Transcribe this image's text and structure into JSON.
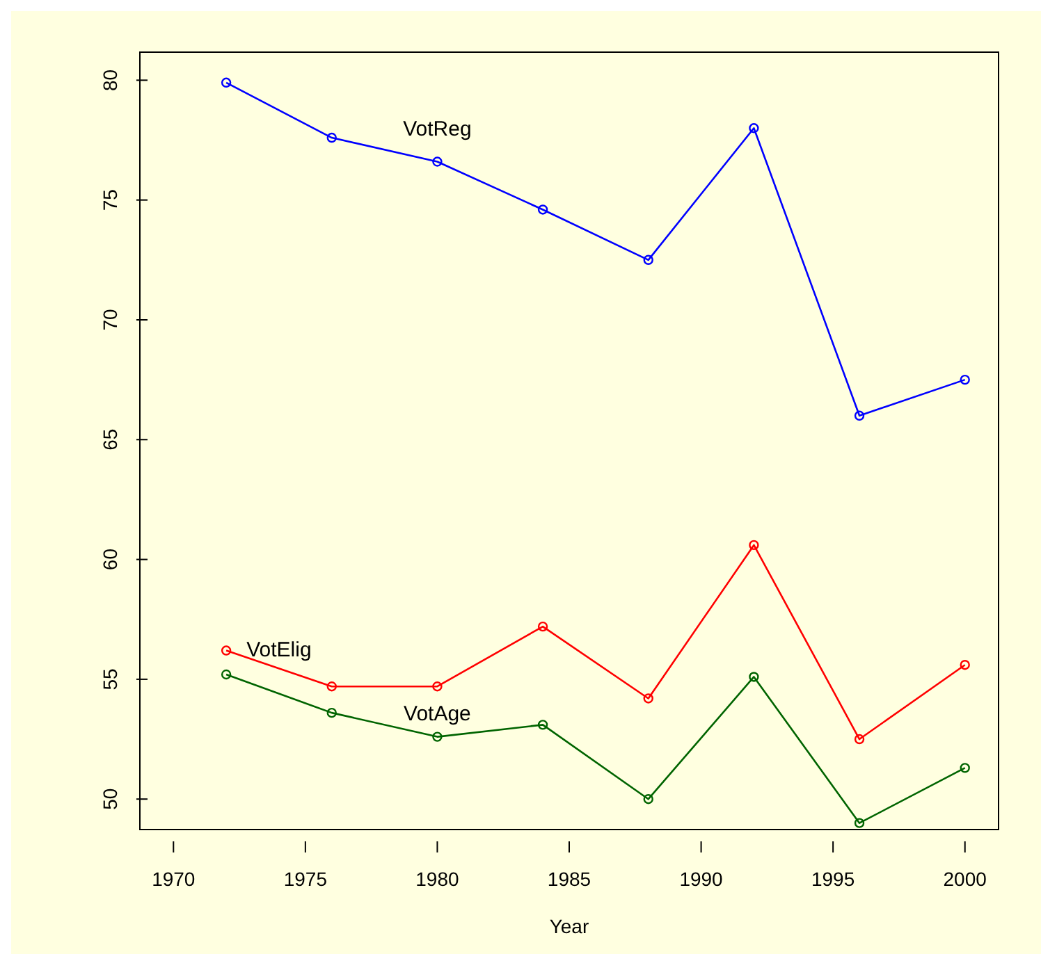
{
  "chart_data": {
    "type": "line",
    "xlabel": "Year",
    "x": [
      1972,
      1976,
      1980,
      1984,
      1988,
      1992,
      1996,
      2000
    ],
    "series": [
      {
        "name": "VotReg",
        "color": "#0000ff",
        "values": [
          79.9,
          77.6,
          76.6,
          74.6,
          72.5,
          78.0,
          66.0,
          67.5
        ]
      },
      {
        "name": "VotElig",
        "color": "#ff0000",
        "values": [
          56.2,
          54.7,
          54.7,
          57.2,
          54.2,
          60.6,
          52.5,
          55.6
        ]
      },
      {
        "name": "VotAge",
        "color": "#006400",
        "values": [
          55.2,
          53.6,
          52.6,
          53.1,
          50.0,
          55.1,
          49.0,
          51.3
        ]
      }
    ],
    "xlim": [
      1968.7,
      2001.3
    ],
    "xticks": [
      1970,
      1975,
      1980,
      1985,
      1990,
      1995,
      2000
    ],
    "ylim": [
      48.7,
      81.2
    ],
    "yticks": [
      50,
      55,
      60,
      65,
      70,
      75,
      80
    ],
    "marker": "circle",
    "line_style": "solid",
    "grid": false,
    "legend": false
  }
}
